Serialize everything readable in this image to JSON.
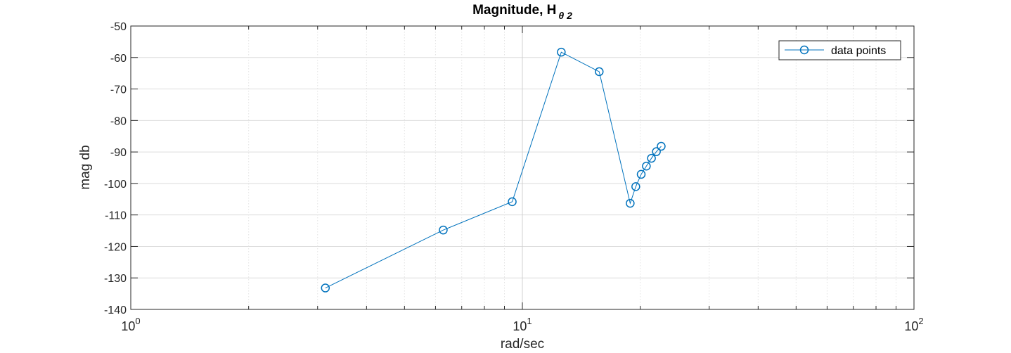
{
  "chart_data": {
    "type": "line",
    "title": "Magnitude, H",
    "title_subscript": "θ 2",
    "xlabel": "rad/sec",
    "ylabel": "mag db",
    "xscale": "log",
    "xlim": [
      1,
      100
    ],
    "ylim": [
      -140,
      -50
    ],
    "yticks": [
      -50,
      -60,
      -70,
      -80,
      -90,
      -100,
      -110,
      -120,
      -130,
      -140
    ],
    "xticks": [
      {
        "base": "10",
        "exp": "0",
        "value": 1
      },
      {
        "base": "10",
        "exp": "1",
        "value": 10
      },
      {
        "base": "10",
        "exp": "2",
        "value": 100
      }
    ],
    "grid": true,
    "legend_position": "top-right",
    "series": [
      {
        "name": "data points",
        "color": "#0072bd",
        "marker": "circle",
        "x": [
          3.14,
          6.28,
          9.42,
          12.57,
          15.71,
          18.85,
          19.48,
          20.11,
          20.73,
          21.36,
          21.99,
          22.62
        ],
        "y": [
          -133.2,
          -114.8,
          -105.8,
          -58.3,
          -64.5,
          -106.3,
          -101.0,
          -97.1,
          -94.5,
          -92.0,
          -89.9,
          -88.2
        ]
      }
    ]
  }
}
